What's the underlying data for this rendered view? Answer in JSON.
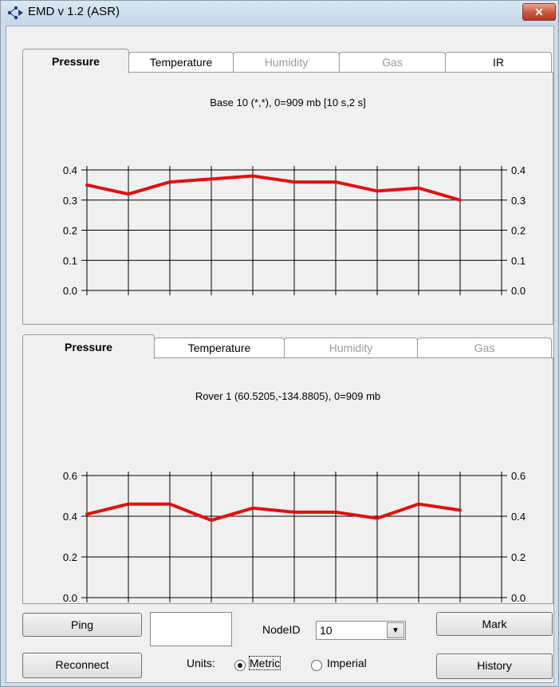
{
  "window": {
    "title": "EMD v 1.2 (ASR)",
    "close_glyph": "✕"
  },
  "top_tabs": [
    {
      "label": "Pressure",
      "state": "active"
    },
    {
      "label": "Temperature",
      "state": "enabled"
    },
    {
      "label": "Humidity",
      "state": "disabled"
    },
    {
      "label": "Gas",
      "state": "disabled"
    },
    {
      "label": "IR",
      "state": "enabled"
    }
  ],
  "bottom_tabs": [
    {
      "label": "Pressure",
      "state": "active"
    },
    {
      "label": "Temperature",
      "state": "enabled"
    },
    {
      "label": "Humidity",
      "state": "disabled"
    },
    {
      "label": "Gas",
      "state": "disabled"
    }
  ],
  "chart_data": [
    {
      "type": "line",
      "title": "Base 10 (*,*), 0=909 mb [10 s,2 s]",
      "xlabel": "",
      "ylabel": "",
      "x": [
        0,
        1,
        2,
        3,
        4,
        5,
        6,
        7,
        8,
        9,
        10
      ],
      "series": [
        {
          "color": "#e01010",
          "values": [
            0.35,
            0.32,
            0.36,
            0.37,
            0.38,
            0.36,
            0.36,
            0.33,
            0.34,
            0.3,
            null
          ]
        }
      ],
      "ylim": [
        0,
        0.4
      ],
      "yticks": [
        "0.0",
        "0.1",
        "0.2",
        "0.3",
        "0.4"
      ],
      "ytick_values": [
        0,
        0.1,
        0.2,
        0.3,
        0.4
      ],
      "grid": true,
      "right_axis_labels": true
    },
    {
      "type": "line",
      "title": "Rover 1 (60.5205,-134.8805), 0=909 mb",
      "xlabel": "",
      "ylabel": "",
      "x": [
        0,
        1,
        2,
        3,
        4,
        5,
        6,
        7,
        8,
        9,
        10
      ],
      "series": [
        {
          "color": "#e01010",
          "values": [
            0.41,
            0.46,
            0.46,
            0.38,
            0.44,
            0.42,
            0.42,
            0.39,
            0.46,
            0.43,
            null
          ]
        }
      ],
      "ylim": [
        0,
        0.6
      ],
      "yticks": [
        "0.0",
        "0.2",
        "0.4",
        "0.6"
      ],
      "ytick_values": [
        0,
        0.2,
        0.4,
        0.6
      ],
      "grid": true,
      "right_axis_labels": true
    }
  ],
  "controls": {
    "ping_label": "Ping",
    "node_input_value": "",
    "nodeid_label": "NodeID",
    "nodeid_value": "10",
    "mark_label": "Mark",
    "reconnect_label": "Reconnect",
    "units_label": "Units:",
    "metric_label": "Metric",
    "imperial_label": "Imperial",
    "units_selected": "Metric",
    "history_label": "History"
  },
  "icons": {
    "app": "network-nodes-icon",
    "close": "close-icon",
    "dropdown": "chevron-down-icon"
  },
  "colors": {
    "line": "#e01010",
    "titlebar": "#c4d6e8",
    "close": "#c9543c"
  }
}
